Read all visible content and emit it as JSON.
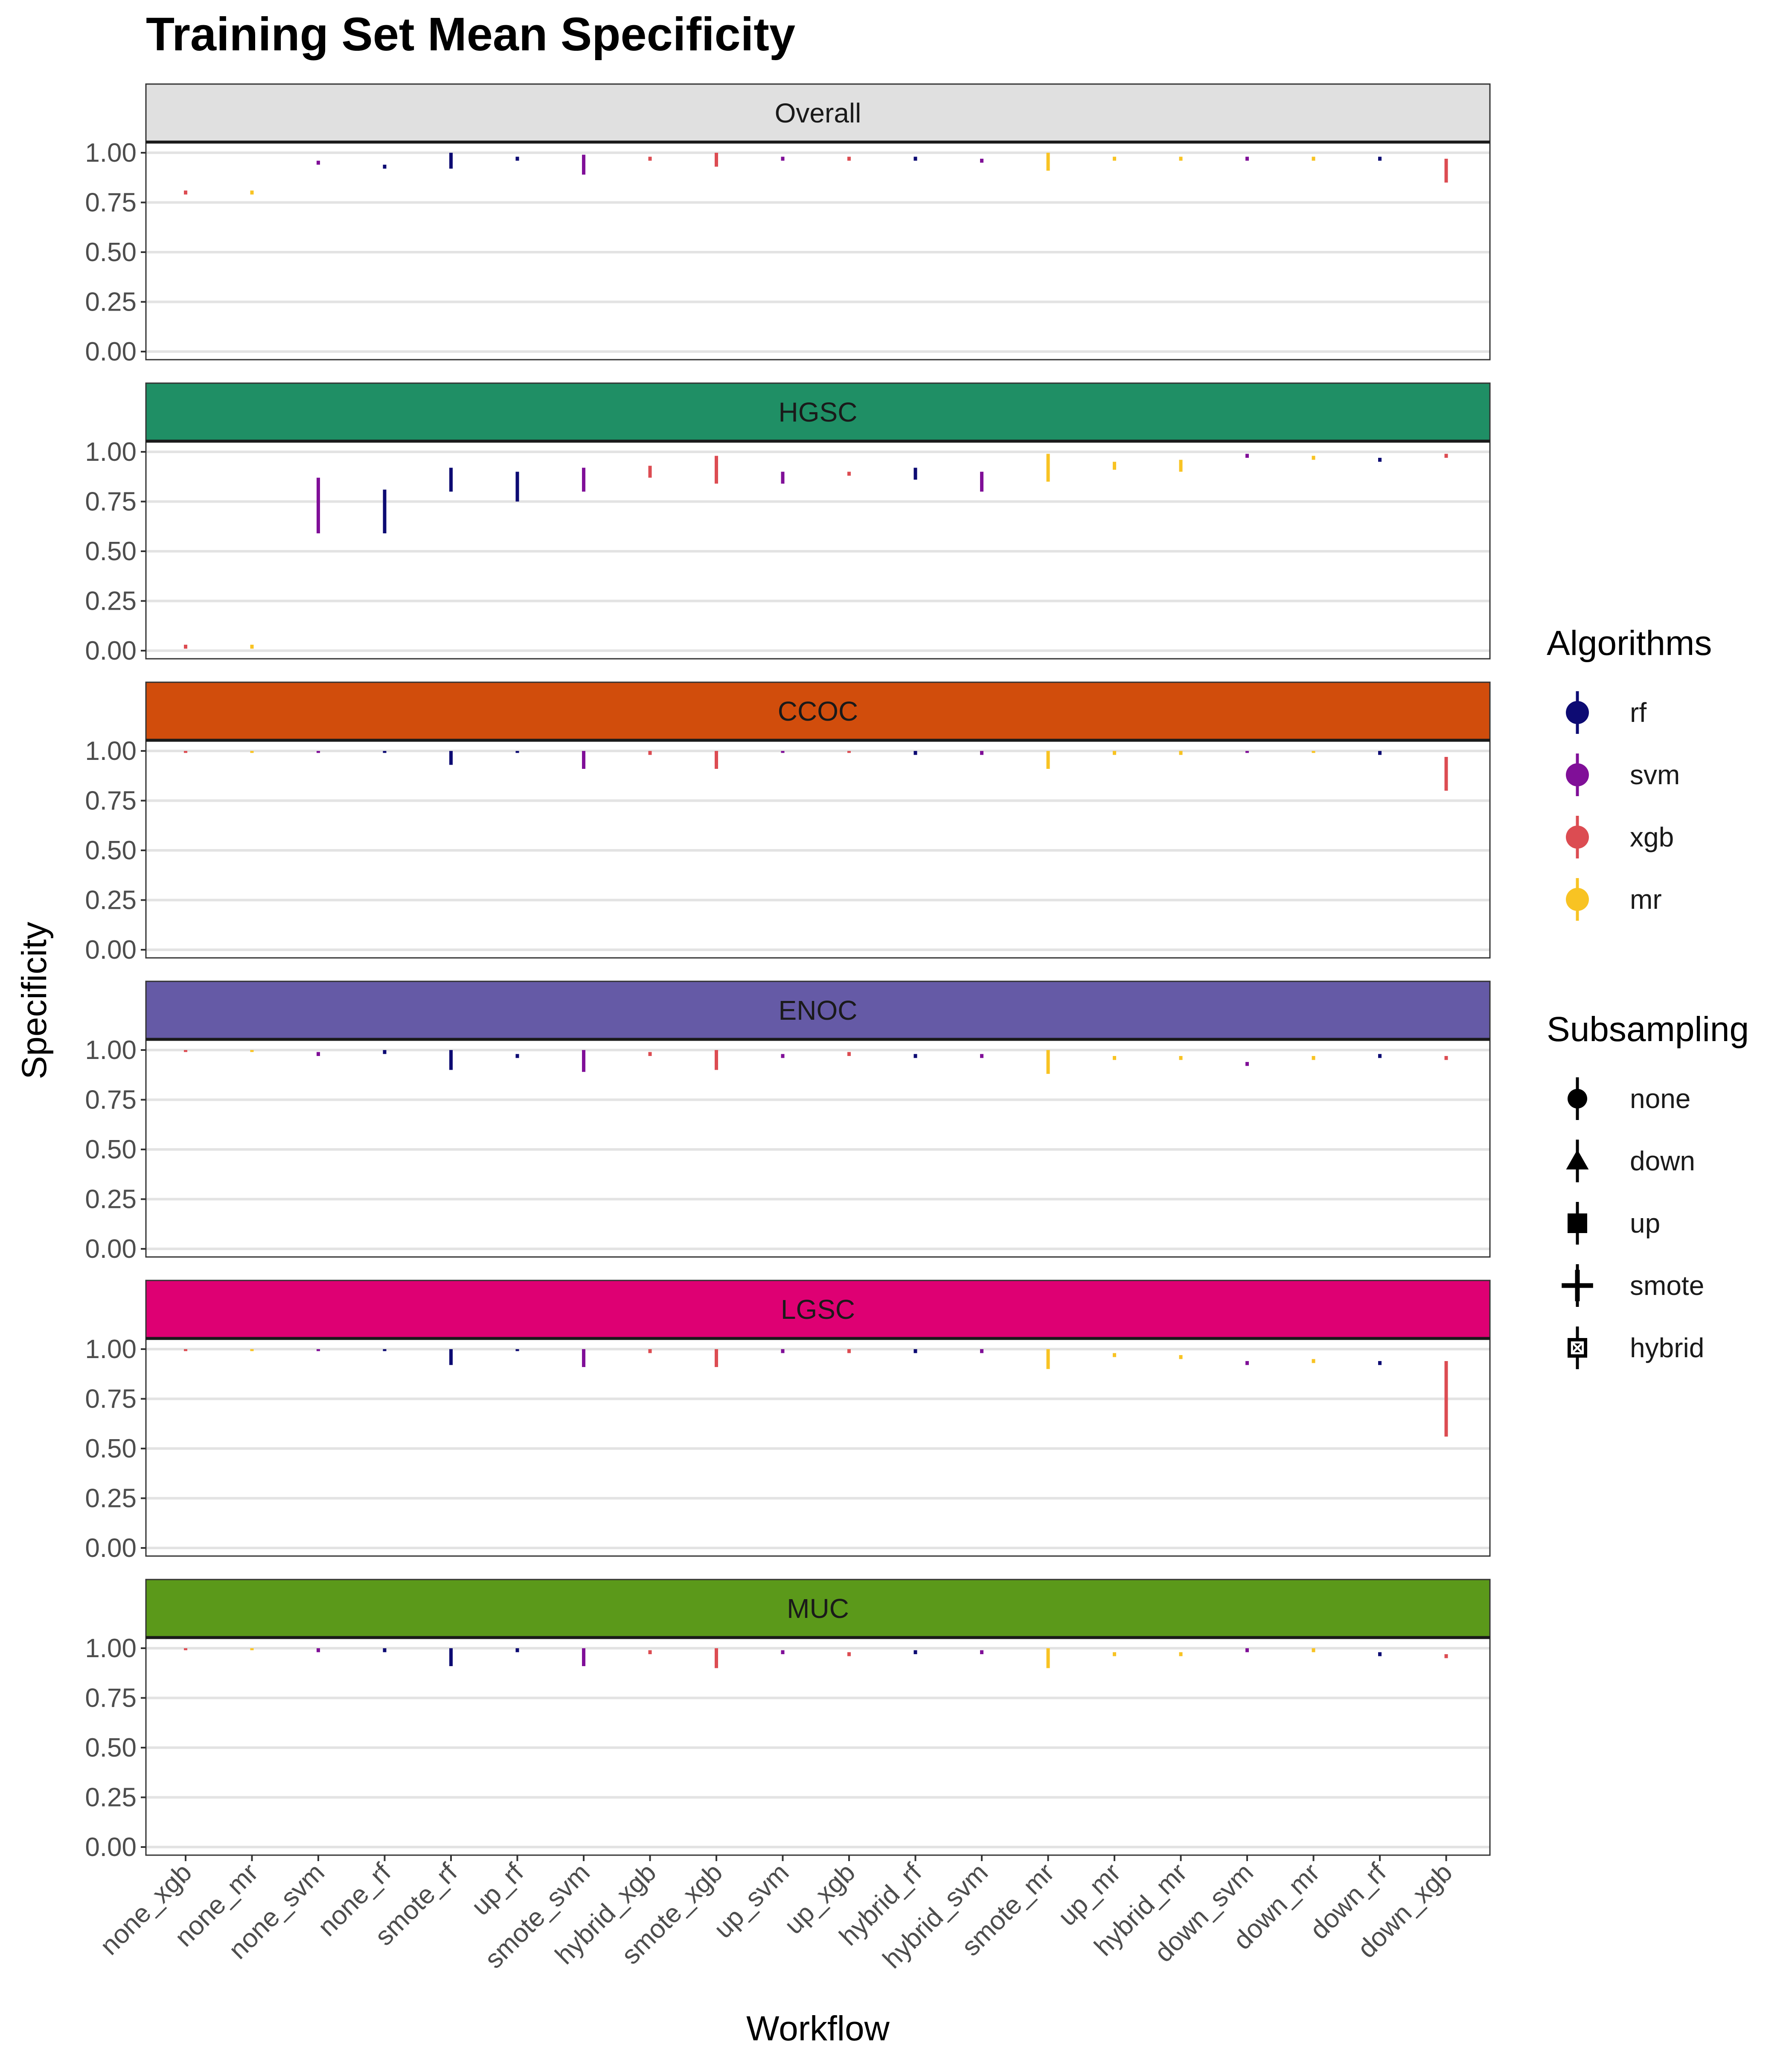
{
  "chart_data": {
    "type": "scatter",
    "title": "Training Set Mean Specificity",
    "xlabel": "Workflow",
    "ylabel": "Specificity",
    "ylim": [
      0,
      1.1
    ],
    "y_ticks": [
      "0.00",
      "0.25",
      "0.50",
      "0.75",
      "1.00"
    ],
    "categories": [
      "none_xgb",
      "none_mr",
      "none_svm",
      "none_rf",
      "smote_rf",
      "up_rf",
      "smote_svm",
      "hybrid_xgb",
      "smote_xgb",
      "up_svm",
      "up_xgb",
      "hybrid_rf",
      "hybrid_svm",
      "smote_mr",
      "up_mr",
      "hybrid_mr",
      "down_svm",
      "down_mr",
      "down_rf",
      "down_xgb"
    ],
    "algorithms": [
      "xgb",
      "mr",
      "svm",
      "rf",
      "rf",
      "rf",
      "svm",
      "xgb",
      "xgb",
      "svm",
      "xgb",
      "rf",
      "svm",
      "mr",
      "mr",
      "mr",
      "svm",
      "mr",
      "rf",
      "xgb"
    ],
    "subsampling": [
      "none",
      "none",
      "none",
      "none",
      "smote",
      "up",
      "smote",
      "hybrid",
      "smote",
      "up",
      "up",
      "hybrid",
      "hybrid",
      "smote",
      "up",
      "hybrid",
      "down",
      "down",
      "down",
      "down"
    ],
    "grid": true,
    "legend_position": "right",
    "legends": [
      {
        "title": "Algorithms",
        "items": [
          {
            "label": "rf",
            "color": "#0d0b73"
          },
          {
            "label": "svm",
            "color": "#800f98"
          },
          {
            "label": "xgb",
            "color": "#dc4c52"
          },
          {
            "label": "mr",
            "color": "#f8c323"
          }
        ]
      },
      {
        "title": "Subsampling",
        "items": [
          {
            "label": "none",
            "shape": "circle"
          },
          {
            "label": "down",
            "shape": "triangle"
          },
          {
            "label": "up",
            "shape": "square"
          },
          {
            "label": "smote",
            "shape": "plus"
          },
          {
            "label": "hybrid",
            "shape": "boxcross"
          }
        ]
      }
    ],
    "facets": [
      {
        "label": "Overall",
        "strip_color": "#e0e0e0",
        "values": [
          0.8,
          0.8,
          0.95,
          0.93,
          0.97,
          0.97,
          0.96,
          0.97,
          0.97,
          0.97,
          0.97,
          0.97,
          0.96,
          0.97,
          0.97,
          0.97,
          0.97,
          0.97,
          0.97,
          0.94
        ],
        "lower": [
          0.79,
          0.79,
          0.94,
          0.92,
          0.92,
          0.96,
          0.89,
          0.96,
          0.93,
          0.96,
          0.96,
          0.96,
          0.95,
          0.91,
          0.96,
          0.96,
          0.96,
          0.96,
          0.96,
          0.85
        ],
        "upper": [
          0.81,
          0.81,
          0.96,
          0.94,
          1.0,
          0.98,
          0.99,
          0.98,
          1.0,
          0.98,
          0.98,
          0.98,
          0.97,
          1.0,
          0.98,
          0.98,
          0.98,
          0.98,
          0.98,
          0.97
        ]
      },
      {
        "label": "HGSC",
        "strip_color": "#1f8f65",
        "values": [
          0.02,
          0.02,
          0.76,
          0.69,
          0.86,
          0.83,
          0.86,
          0.9,
          0.91,
          0.87,
          0.89,
          0.89,
          0.85,
          0.92,
          0.93,
          0.93,
          0.98,
          0.97,
          0.96,
          0.98
        ],
        "lower": [
          0.01,
          0.01,
          0.59,
          0.59,
          0.8,
          0.75,
          0.8,
          0.87,
          0.84,
          0.84,
          0.88,
          0.86,
          0.8,
          0.85,
          0.91,
          0.9,
          0.97,
          0.96,
          0.95,
          0.97
        ],
        "upper": [
          0.03,
          0.03,
          0.87,
          0.81,
          0.92,
          0.9,
          0.92,
          0.93,
          0.98,
          0.9,
          0.9,
          0.92,
          0.9,
          0.99,
          0.95,
          0.96,
          0.99,
          0.98,
          0.97,
          0.99
        ]
      },
      {
        "label": "CCOC",
        "strip_color": "#d14d0c",
        "values": [
          1.0,
          1.0,
          1.0,
          1.0,
          1.0,
          1.0,
          0.99,
          0.99,
          0.99,
          1.0,
          1.0,
          0.99,
          0.99,
          0.99,
          0.99,
          0.99,
          1.0,
          1.0,
          0.99,
          0.92
        ],
        "lower": [
          0.99,
          0.99,
          0.99,
          0.99,
          0.93,
          0.99,
          0.91,
          0.98,
          0.91,
          0.99,
          0.99,
          0.98,
          0.98,
          0.91,
          0.98,
          0.98,
          0.99,
          0.99,
          0.98,
          0.8
        ],
        "upper": [
          1.0,
          1.0,
          1.0,
          1.0,
          1.0,
          1.0,
          1.0,
          1.0,
          1.0,
          1.0,
          1.0,
          1.0,
          1.0,
          1.0,
          1.0,
          1.0,
          1.0,
          1.0,
          1.0,
          0.97
        ]
      },
      {
        "label": "ENOC",
        "strip_color": "#655aa6",
        "values": [
          1.0,
          1.0,
          0.98,
          0.99,
          0.98,
          0.97,
          0.97,
          0.98,
          0.98,
          0.97,
          0.98,
          0.97,
          0.97,
          0.96,
          0.96,
          0.96,
          0.93,
          0.96,
          0.97,
          0.96
        ],
        "lower": [
          0.99,
          0.99,
          0.97,
          0.98,
          0.9,
          0.96,
          0.89,
          0.97,
          0.9,
          0.96,
          0.97,
          0.96,
          0.96,
          0.88,
          0.95,
          0.95,
          0.92,
          0.95,
          0.96,
          0.95
        ],
        "upper": [
          1.0,
          1.0,
          0.99,
          1.0,
          1.0,
          0.98,
          1.0,
          0.99,
          1.0,
          0.98,
          0.99,
          0.98,
          0.98,
          1.0,
          0.97,
          0.97,
          0.94,
          0.97,
          0.98,
          0.97
        ]
      },
      {
        "label": "LGSC",
        "strip_color": "#de0073",
        "values": [
          1.0,
          1.0,
          1.0,
          1.0,
          1.0,
          1.0,
          0.99,
          0.99,
          0.99,
          0.99,
          0.99,
          0.99,
          0.99,
          0.97,
          0.97,
          0.96,
          0.93,
          0.94,
          0.93,
          0.84
        ],
        "lower": [
          0.99,
          0.99,
          0.99,
          0.99,
          0.92,
          0.99,
          0.91,
          0.98,
          0.91,
          0.98,
          0.98,
          0.98,
          0.98,
          0.9,
          0.96,
          0.95,
          0.92,
          0.93,
          0.92,
          0.56
        ],
        "upper": [
          1.0,
          1.0,
          1.0,
          1.0,
          1.0,
          1.0,
          1.0,
          1.0,
          1.0,
          1.0,
          1.0,
          1.0,
          1.0,
          1.0,
          0.98,
          0.97,
          0.94,
          0.95,
          0.94,
          0.94
        ]
      },
      {
        "label": "MUC",
        "strip_color": "#5b991a",
        "values": [
          1.0,
          1.0,
          0.99,
          0.99,
          0.98,
          0.99,
          0.98,
          0.98,
          0.97,
          0.98,
          0.97,
          0.98,
          0.98,
          0.97,
          0.97,
          0.97,
          0.99,
          0.99,
          0.97,
          0.96
        ],
        "lower": [
          0.99,
          0.99,
          0.98,
          0.98,
          0.91,
          0.98,
          0.91,
          0.97,
          0.9,
          0.97,
          0.96,
          0.97,
          0.97,
          0.9,
          0.96,
          0.96,
          0.98,
          0.98,
          0.96,
          0.95
        ],
        "upper": [
          1.0,
          1.0,
          1.0,
          1.0,
          1.0,
          1.0,
          1.0,
          0.99,
          1.0,
          0.99,
          0.98,
          0.99,
          0.99,
          1.0,
          0.98,
          0.98,
          1.0,
          1.0,
          0.98,
          0.97
        ]
      }
    ]
  }
}
